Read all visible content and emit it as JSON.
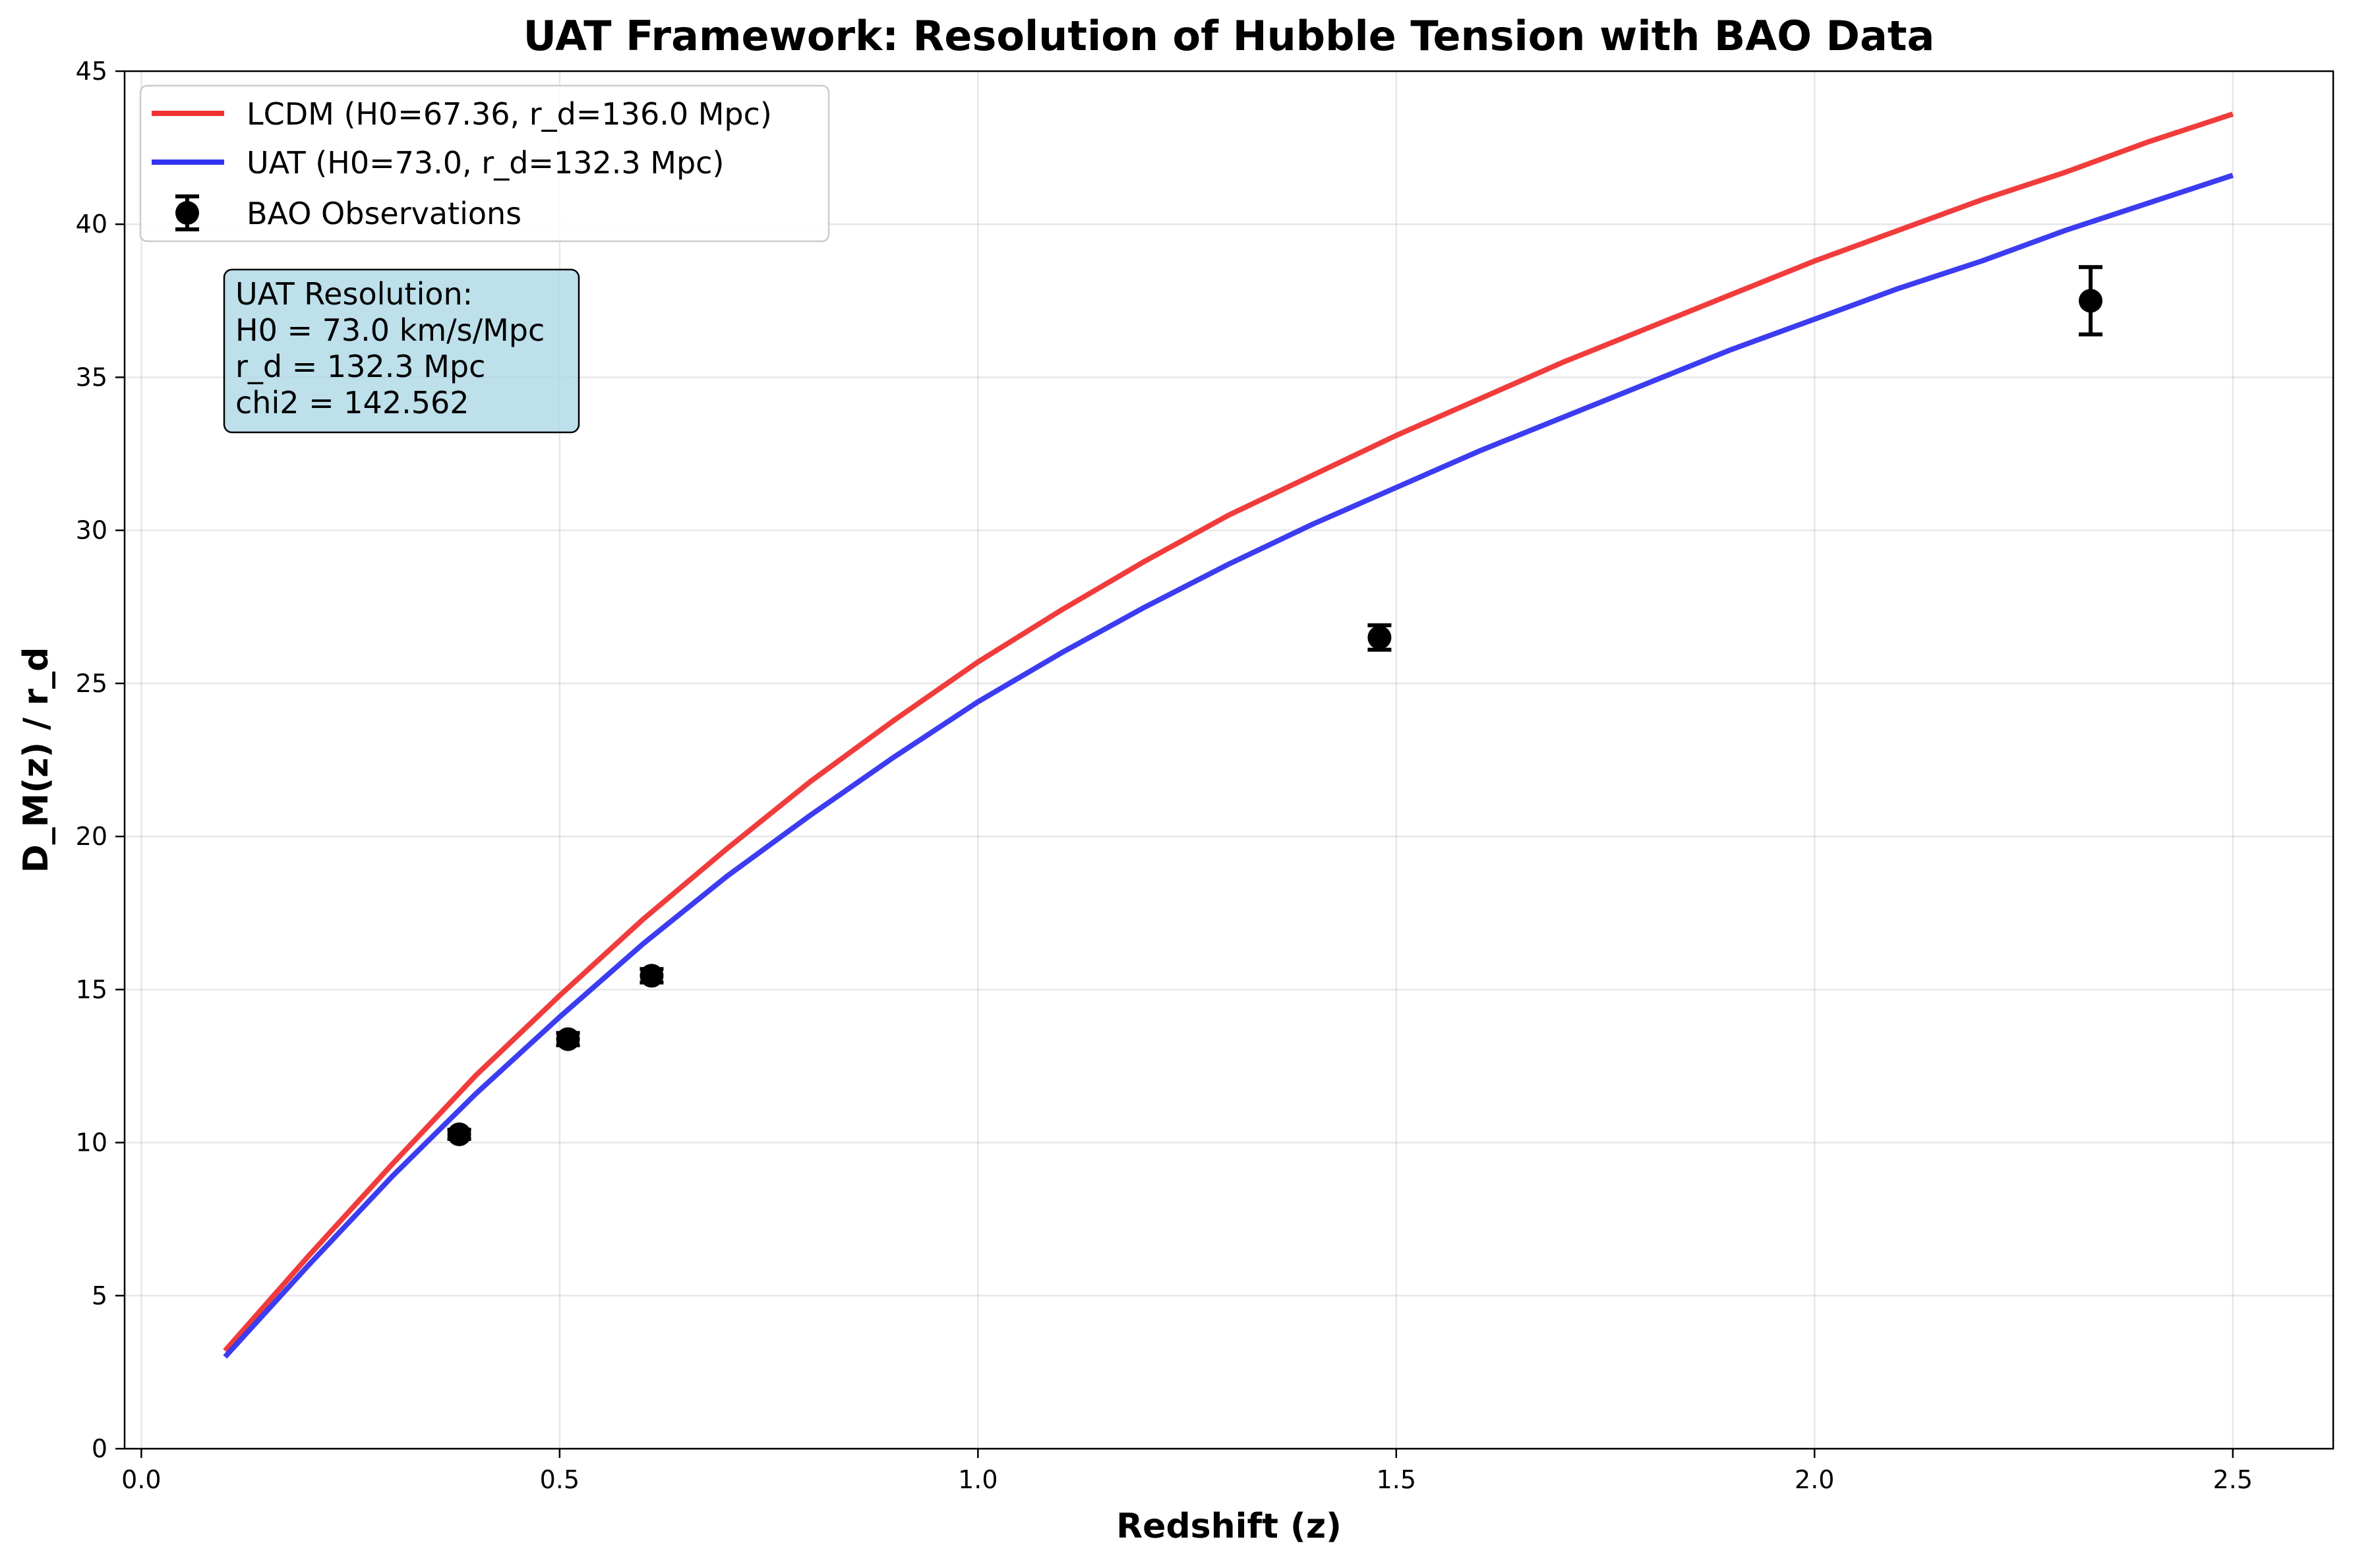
{
  "chart_data": {
    "type": "line",
    "title": "UAT Framework: Resolution of Hubble Tension with BAO Data",
    "xlabel": "Redshift (z)",
    "ylabel": "D_M(z) / r_d",
    "xlim": [
      -0.02,
      2.62
    ],
    "ylim": [
      0,
      45
    ],
    "xticks": [
      0.0,
      0.5,
      1.0,
      1.5,
      2.0,
      2.5
    ],
    "xtick_labels": [
      "0.0",
      "0.5",
      "1.0",
      "1.5",
      "2.0",
      "2.5"
    ],
    "yticks": [
      0,
      5,
      10,
      15,
      20,
      25,
      30,
      35,
      40,
      45
    ],
    "ytick_labels": [
      "0",
      "5",
      "10",
      "15",
      "20",
      "25",
      "30",
      "35",
      "40",
      "45"
    ],
    "grid": true,
    "legend_position": "top-left",
    "series": [
      {
        "name": "LCDM (H0=67.36, r_d=136.0 Mpc)",
        "kind": "line",
        "color": "#f03232",
        "x": [
          0.1,
          0.2,
          0.3,
          0.4,
          0.5,
          0.6,
          0.7,
          0.8,
          0.9,
          1.0,
          1.1,
          1.2,
          1.3,
          1.4,
          1.5,
          1.6,
          1.7,
          1.8,
          1.9,
          2.0,
          2.1,
          2.2,
          2.3,
          2.4,
          2.5
        ],
        "y": [
          3.2,
          6.3,
          9.3,
          12.2,
          14.8,
          17.3,
          19.6,
          21.8,
          23.8,
          25.7,
          27.4,
          29.0,
          30.5,
          31.8,
          33.1,
          34.3,
          35.5,
          36.6,
          37.7,
          38.8,
          39.8,
          40.8,
          41.7,
          42.7,
          43.6
        ]
      },
      {
        "name": "UAT (H0=73.0, r_d=132.3 Mpc)",
        "kind": "line",
        "color": "#3232f0",
        "x": [
          0.1,
          0.2,
          0.3,
          0.4,
          0.5,
          0.6,
          0.7,
          0.8,
          0.9,
          1.0,
          1.1,
          1.2,
          1.3,
          1.4,
          1.5,
          1.6,
          1.7,
          1.8,
          1.9,
          2.0,
          2.1,
          2.2,
          2.3,
          2.4,
          2.5
        ],
        "y": [
          3.0,
          6.0,
          8.9,
          11.6,
          14.1,
          16.5,
          18.7,
          20.7,
          22.6,
          24.4,
          26.0,
          27.5,
          28.9,
          30.2,
          31.4,
          32.6,
          33.7,
          34.8,
          35.9,
          36.9,
          37.9,
          38.8,
          39.8,
          40.7,
          41.6
        ]
      },
      {
        "name": "BAO Observations",
        "kind": "errorbar",
        "color": "#000000",
        "x": [
          0.38,
          0.51,
          0.61,
          1.48,
          2.33
        ],
        "y": [
          10.27,
          13.38,
          15.45,
          26.5,
          37.5
        ],
        "yerr": [
          0.15,
          0.2,
          0.22,
          0.4,
          1.1
        ]
      }
    ],
    "annotation": {
      "lines": [
        "UAT Resolution:",
        "H0 = 73.0 km/s/Mpc",
        "r_d = 132.3 Mpc",
        "chi2 = 142.562"
      ],
      "background": "#add8e6"
    }
  }
}
